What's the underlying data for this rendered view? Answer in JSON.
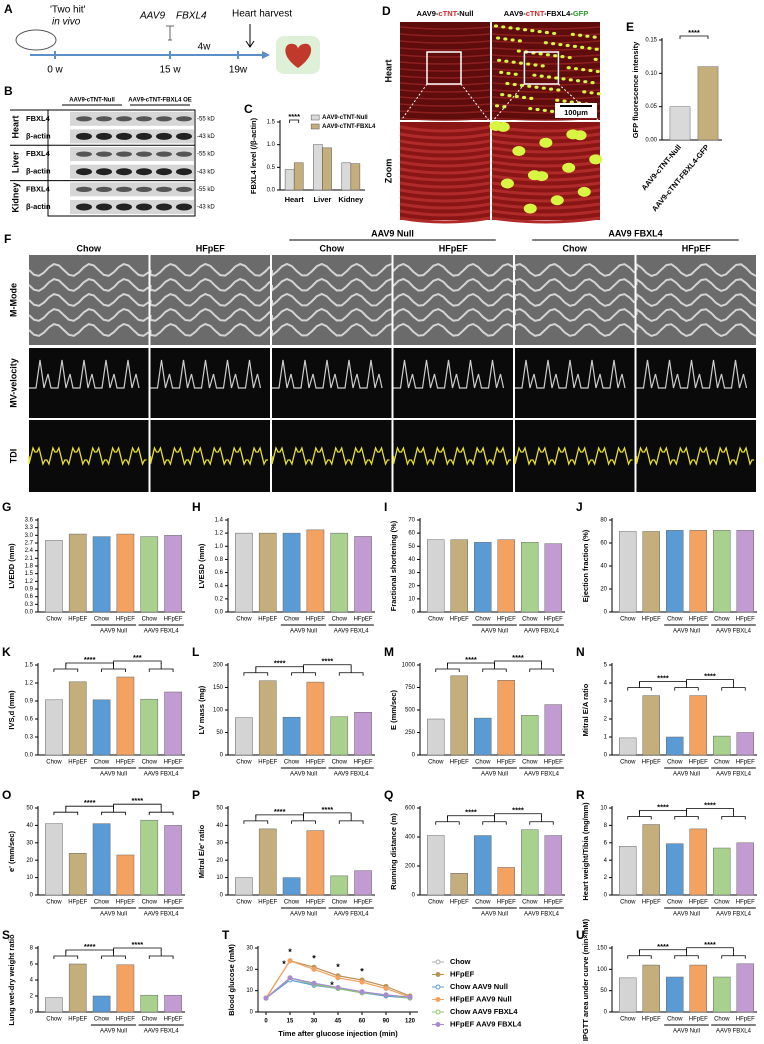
{
  "schematic": {
    "label": "A",
    "model": "'Two hit'",
    "model_sub": "in vivo",
    "vector": "AAV9",
    "gene": "FBXL4",
    "endpoint": "Heart harvest",
    "timepoints": [
      "0 w",
      "15 w",
      "19w"
    ],
    "interval": "4w"
  },
  "western_blot": {
    "label": "B",
    "groups": [
      "AAV9-cTNT-Null",
      "AAV9-cTNT-FBXL4 OE"
    ],
    "tissues": [
      {
        "name": "Heart",
        "bands": [
          "FBXL4",
          "β-actin"
        ],
        "sizes": [
          "-55 kD",
          "-43 kD"
        ]
      },
      {
        "name": "Liver",
        "bands": [
          "FBXL4",
          "β-actin"
        ],
        "sizes": [
          "-55 kD",
          "-43 kD"
        ]
      },
      {
        "name": "Kidney",
        "bands": [
          "FBXL4",
          "β-actin"
        ],
        "sizes": [
          "-55 kD",
          "-43 kD"
        ]
      }
    ]
  },
  "histology": {
    "label": "D",
    "columns": [
      [
        "AAV9-",
        "cTNT",
        "-Null"
      ],
      [
        "AAV9-",
        "cTNT",
        "-FBXL4-",
        "GFP"
      ]
    ],
    "rows": [
      "Heart",
      "Zoom"
    ],
    "scale_bar": "100μm"
  },
  "echo": {
    "label": "F",
    "columns": [
      "Chow",
      "HFpEF",
      "Chow",
      "HFpEF",
      "Chow",
      "HFpEF"
    ],
    "groups": [
      "AAV9 Null",
      "AAV9 FBXL4"
    ],
    "rows": [
      "M-Mode",
      "MV-velocity",
      "TDI"
    ]
  },
  "chart_data": [
    {
      "type": "bar",
      "label": "C",
      "ylabel": "FBXL4 level (/β-actin)",
      "categories": [
        "Heart",
        "Liver",
        "Kidney"
      ],
      "series": [
        {
          "name": "AAV9-cTNT-Null",
          "color": "#d9d9d9",
          "values": [
            0.45,
            1.0,
            0.6
          ]
        },
        {
          "name": "AAV9-cTNT-FBXL4",
          "color": "#c4ae7c",
          "values": [
            0.6,
            0.93,
            0.58
          ]
        }
      ],
      "ylim": [
        0,
        1.5
      ],
      "yticks": [
        {
          "value": 0,
          "label": "0.0"
        },
        0.5,
        {
          "value": 1,
          "label": "1.0"
        },
        1.5
      ],
      "annotations": [
        "****"
      ]
    },
    {
      "type": "bar",
      "label": "E",
      "ylabel": "GFP fluorescence intensity",
      "categories": [
        "AAV9-cTNT-Null",
        "AAV9-cTNT-FBXL4-GFP"
      ],
      "values": [
        0.05,
        0.11
      ],
      "colors": [
        "#d9d9d9",
        "#c4ae7c"
      ],
      "ylim": [
        0,
        0.15
      ],
      "yticks": [
        {
          "value": 0,
          "label": "0.00"
        },
        0.05,
        {
          "value": 0.1,
          "label": "0.10"
        },
        0.15
      ],
      "annotations": [
        "****"
      ]
    },
    {
      "type": "bar",
      "label": "G",
      "ylabel": "LVEDD (mm)",
      "categories": [
        "Chow",
        "HFpEF",
        "Chow",
        "HFpEF",
        "Chow",
        "HFpEF"
      ],
      "groups": [
        "AAV9 Null",
        "AAV9 FBXL4"
      ],
      "values": [
        2.8,
        3.05,
        2.95,
        3.05,
        2.95,
        3.0
      ],
      "colors": [
        "#d4d4d4",
        "#c4ae7c",
        "#5b9bd5",
        "#f4a261",
        "#a9d18e",
        "#c39bd3"
      ],
      "ylim": [
        0,
        3.6
      ],
      "yticks": [
        {
          "value": 0,
          "label": "0.0"
        },
        0.3,
        0.6,
        0.9,
        1.2,
        1.5,
        1.8,
        2.1,
        2.4,
        2.7,
        {
          "value": 3,
          "label": "3.0"
        },
        3.3,
        3.6
      ]
    },
    {
      "type": "bar",
      "label": "H",
      "ylabel": "LVESD (mm)",
      "categories": [
        "Chow",
        "HFpEF",
        "Chow",
        "HFpEF",
        "Chow",
        "HFpEF"
      ],
      "groups": [
        "AAV9 Null",
        "AAV9 FBXL4"
      ],
      "values": [
        1.2,
        1.2,
        1.2,
        1.25,
        1.2,
        1.15
      ],
      "colors": [
        "#d4d4d4",
        "#c4ae7c",
        "#5b9bd5",
        "#f4a261",
        "#a9d18e",
        "#c39bd3"
      ],
      "ylim": [
        0,
        1.4
      ],
      "yticks": [
        {
          "value": 0,
          "label": "0.0"
        },
        0.2,
        0.4,
        0.6,
        0.8,
        {
          "value": 1,
          "label": "1.0"
        },
        1.2,
        1.4
      ]
    },
    {
      "type": "bar",
      "label": "I",
      "ylabel": "Fractional shortening (%)",
      "categories": [
        "Chow",
        "HFpEF",
        "Chow",
        "HFpEF",
        "Chow",
        "HFpEF"
      ],
      "groups": [
        "AAV9 Null",
        "AAV9 FBXL4"
      ],
      "values": [
        55,
        55,
        53,
        55,
        53,
        52
      ],
      "colors": [
        "#d4d4d4",
        "#c4ae7c",
        "#5b9bd5",
        "#f4a261",
        "#a9d18e",
        "#c39bd3"
      ],
      "ylim": [
        0,
        70
      ],
      "yticks": [
        0,
        10,
        20,
        30,
        40,
        50,
        60,
        70
      ]
    },
    {
      "type": "bar",
      "label": "J",
      "ylabel": "Ejection fraction (%)",
      "categories": [
        "Chow",
        "HFpEF",
        "Chow",
        "HFpEF",
        "Chow",
        "HFpEF"
      ],
      "groups": [
        "AAV9 Null",
        "AAV9 FBXL4"
      ],
      "values": [
        70,
        70,
        71,
        71,
        71,
        71
      ],
      "colors": [
        "#d4d4d4",
        "#c4ae7c",
        "#5b9bd5",
        "#f4a261",
        "#a9d18e",
        "#c39bd3"
      ],
      "ylim": [
        0,
        80
      ],
      "yticks": [
        0,
        20,
        40,
        60,
        80
      ]
    },
    {
      "type": "bar",
      "label": "K",
      "ylabel": "IVS,d (mm)",
      "categories": [
        "Chow",
        "HFpEF",
        "Chow",
        "HFpEF",
        "Chow",
        "HFpEF"
      ],
      "groups": [
        "AAV9 Null",
        "AAV9 FBXL4"
      ],
      "values": [
        0.92,
        1.22,
        0.92,
        1.3,
        0.93,
        1.05
      ],
      "colors": [
        "#d4d4d4",
        "#c4ae7c",
        "#5b9bd5",
        "#f4a261",
        "#a9d18e",
        "#c39bd3"
      ],
      "ylim": [
        0,
        1.5
      ],
      "yticks": [
        {
          "value": 0,
          "label": "0.0"
        },
        0.3,
        0.6,
        0.9,
        1.2,
        1.5
      ],
      "annotations": [
        "****",
        "***"
      ]
    },
    {
      "type": "bar",
      "label": "L",
      "ylabel": "LV mass (mg)",
      "categories": [
        "Chow",
        "HFpEF",
        "Chow",
        "HFpEF",
        "Chow",
        "HFpEF"
      ],
      "groups": [
        "AAV9 Null",
        "AAV9 FBXL4"
      ],
      "values": [
        83,
        165,
        84,
        162,
        85,
        95
      ],
      "colors": [
        "#d4d4d4",
        "#c4ae7c",
        "#5b9bd5",
        "#f4a261",
        "#a9d18e",
        "#c39bd3"
      ],
      "ylim": [
        0,
        200
      ],
      "yticks": [
        0,
        50,
        100,
        150,
        200
      ],
      "annotations": [
        "****",
        "****"
      ]
    },
    {
      "type": "bar",
      "label": "M",
      "ylabel": "E (mm/sec)",
      "categories": [
        "Chow",
        "HFpEF",
        "Chow",
        "HFpEF",
        "Chow",
        "HFpEF"
      ],
      "groups": [
        "AAV9 Null",
        "AAV9 FBXL4"
      ],
      "values": [
        400,
        880,
        410,
        830,
        440,
        560
      ],
      "colors": [
        "#d4d4d4",
        "#c4ae7c",
        "#5b9bd5",
        "#f4a261",
        "#a9d18e",
        "#c39bd3"
      ],
      "ylim": [
        0,
        1000
      ],
      "yticks": [
        0,
        250,
        500,
        750,
        1000
      ],
      "annotations": [
        "****",
        "****"
      ]
    },
    {
      "type": "bar",
      "label": "N",
      "ylabel": "Mitral E/A ratio",
      "categories": [
        "Chow",
        "HFpEF",
        "Chow",
        "HFpEF",
        "Chow",
        "HFpEF"
      ],
      "groups": [
        "AAV9 Null",
        "AAV9 FBXL4"
      ],
      "values": [
        0.95,
        3.3,
        1.0,
        3.3,
        1.05,
        1.25
      ],
      "colors": [
        "#d4d4d4",
        "#c4ae7c",
        "#5b9bd5",
        "#f4a261",
        "#a9d18e",
        "#c39bd3"
      ],
      "ylim": [
        0,
        5
      ],
      "yticks": [
        0,
        1,
        2,
        3,
        4,
        5
      ],
      "annotations": [
        "****",
        "****"
      ]
    },
    {
      "type": "bar",
      "label": "O",
      "ylabel": "e' (mm/sec)",
      "categories": [
        "Chow",
        "HFpEF",
        "Chow",
        "HFpEF",
        "Chow",
        "HFpEF"
      ],
      "groups": [
        "AAV9 Null",
        "AAV9 FBXL4"
      ],
      "values": [
        41,
        24,
        41,
        23,
        43,
        40
      ],
      "colors": [
        "#d4d4d4",
        "#c4ae7c",
        "#5b9bd5",
        "#f4a261",
        "#a9d18e",
        "#c39bd3"
      ],
      "ylim": [
        0,
        50
      ],
      "yticks": [
        0,
        10,
        20,
        30,
        40,
        50
      ],
      "annotations": [
        "****",
        "****"
      ]
    },
    {
      "type": "bar",
      "label": "P",
      "ylabel": "Mitral E/e' ratio",
      "categories": [
        "Chow",
        "HFpEF",
        "Chow",
        "HFpEF",
        "Chow",
        "HFpEF"
      ],
      "groups": [
        "AAV9 Null",
        "AAV9 FBXL4"
      ],
      "values": [
        10,
        38,
        10,
        37,
        11,
        14
      ],
      "colors": [
        "#d4d4d4",
        "#c4ae7c",
        "#5b9bd5",
        "#f4a261",
        "#a9d18e",
        "#c39bd3"
      ],
      "ylim": [
        0,
        50
      ],
      "yticks": [
        0,
        10,
        20,
        30,
        40,
        50
      ],
      "annotations": [
        "****",
        "****"
      ]
    },
    {
      "type": "bar",
      "label": "Q",
      "ylabel": "Running distance (m)",
      "categories": [
        "Chow",
        "HFpEF",
        "Chow",
        "HFpEF",
        "Chow",
        "HFpEF"
      ],
      "groups": [
        "AAV9 Null",
        "AAV9 FBXL4"
      ],
      "values": [
        410,
        150,
        410,
        190,
        450,
        410
      ],
      "colors": [
        "#d4d4d4",
        "#c4ae7c",
        "#5b9bd5",
        "#f4a261",
        "#a9d18e",
        "#c39bd3"
      ],
      "ylim": [
        0,
        600
      ],
      "yticks": [
        0,
        200,
        400,
        600
      ],
      "annotations": [
        "****",
        "****"
      ]
    },
    {
      "type": "bar",
      "label": "R",
      "ylabel": "Heart weight/Tibia (mg/mm)",
      "categories": [
        "Chow",
        "HFpEF",
        "Chow",
        "HFpEF",
        "Chow",
        "HFpEF"
      ],
      "groups": [
        "AAV9 Null",
        "AAV9 FBXL4"
      ],
      "values": [
        5.6,
        8.1,
        5.9,
        7.6,
        5.4,
        6.0
      ],
      "colors": [
        "#d4d4d4",
        "#c4ae7c",
        "#5b9bd5",
        "#f4a261",
        "#a9d18e",
        "#c39bd3"
      ],
      "ylim": [
        0,
        10
      ],
      "yticks": [
        0,
        2,
        4,
        6,
        8,
        10
      ],
      "annotations": [
        "****",
        "****"
      ]
    },
    {
      "type": "bar",
      "label": "S",
      "ylabel": "Lung wet-dry weight ratio",
      "categories": [
        "Chow",
        "HFpEF",
        "Chow",
        "HFpEF",
        "Chow",
        "HFpEF"
      ],
      "groups": [
        "AAV9 Null",
        "AAV9 FBXL4"
      ],
      "values": [
        1.8,
        6.0,
        2.0,
        5.9,
        2.1,
        2.1
      ],
      "colors": [
        "#d4d4d4",
        "#c4ae7c",
        "#5b9bd5",
        "#f4a261",
        "#a9d18e",
        "#c39bd3"
      ],
      "ylim": [
        0,
        8
      ],
      "yticks": [
        0,
        2,
        4,
        6,
        8
      ],
      "annotations": [
        "****",
        "****"
      ]
    },
    {
      "type": "line",
      "label": "T",
      "ylabel": "Blood glucose (mM)",
      "xlabel": "Time after glucose injection (min)",
      "categories": [
        "0",
        "15",
        "30",
        "45",
        "60",
        "90",
        "120"
      ],
      "series": [
        {
          "name": "Chow",
          "color": "#b0b0b0",
          "values": [
            6.5,
            16,
            13,
            11,
            9,
            8,
            7
          ]
        },
        {
          "name": "HFpEF",
          "color": "#b8935a",
          "values": [
            6.5,
            24,
            21,
            17,
            15,
            12,
            7.5
          ]
        },
        {
          "name": "Chow AAV9 Null",
          "color": "#5b9bd5",
          "values": [
            6.5,
            15,
            12.5,
            11,
            9,
            7.5,
            6.5
          ]
        },
        {
          "name": "HFpEF AAV9 Null",
          "color": "#f4a261",
          "values": [
            6.5,
            24,
            20,
            16,
            14,
            11,
            7
          ]
        },
        {
          "name": "Chow AAV9 FBXL4",
          "color": "#8cc66d",
          "values": [
            6.5,
            16,
            13,
            11,
            9,
            8,
            6.5
          ]
        },
        {
          "name": "HFpEF AAV9 FBXL4",
          "color": "#a98bd0",
          "values": [
            6.5,
            16,
            13.5,
            11.5,
            9.5,
            8,
            7
          ]
        }
      ],
      "ylim": [
        0,
        30
      ],
      "yticks": [
        0,
        10,
        20,
        30
      ],
      "annotations": [
        "*",
        "*",
        "*",
        "*",
        "*",
        "*"
      ]
    },
    {
      "type": "bar",
      "label": "U",
      "ylabel": "IPGTT area under curve (min×mM)",
      "categories": [
        "Chow",
        "HFpEF",
        "Chow",
        "HFpEF",
        "Chow",
        "HFpEF"
      ],
      "groups": [
        "AAV9 Null",
        "AAV9 FBXL4"
      ],
      "values": [
        80,
        110,
        82,
        110,
        82,
        113
      ],
      "colors": [
        "#d4d4d4",
        "#c4ae7c",
        "#5b9bd5",
        "#f4a261",
        "#a9d18e",
        "#c39bd3"
      ],
      "ylim": [
        0,
        150
      ],
      "yticks": [
        0,
        50,
        100,
        150
      ],
      "annotations": [
        "****",
        "****"
      ]
    }
  ]
}
